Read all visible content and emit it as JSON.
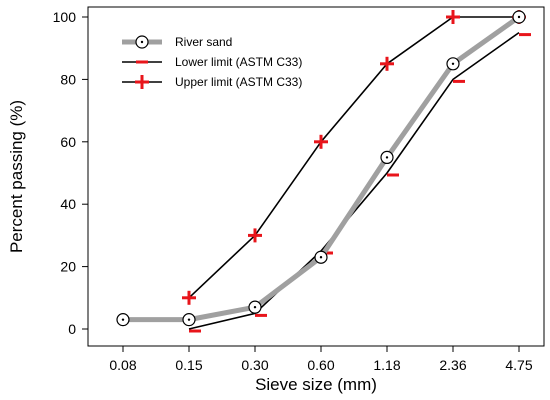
{
  "chart_data": {
    "type": "line",
    "xlabel": "Sieve size (mm)",
    "ylabel": "Percent passing (%)",
    "categories": [
      "0.08",
      "0.15",
      "0.30",
      "0.60",
      "1.18",
      "2.36",
      "4.75"
    ],
    "yticks": [
      "0",
      "20",
      "40",
      "60",
      "80",
      "100"
    ],
    "ylim": [
      0,
      100
    ],
    "grid": false,
    "legend_position": "top-left",
    "series": [
      {
        "name": "River sand",
        "marker": "circle-dot",
        "color": "#a0a0a0",
        "values": [
          3,
          3,
          7,
          23,
          55,
          85,
          100
        ]
      },
      {
        "name": "Lower limit (ASTM C33)",
        "marker": "dash",
        "color": "#000000",
        "marker_color": "#e8151b",
        "values": [
          null,
          0,
          5,
          25,
          50,
          80,
          95
        ]
      },
      {
        "name": "Upper limit (ASTM C33)",
        "marker": "plus",
        "color": "#000000",
        "marker_color": "#e8151b",
        "values": [
          null,
          10,
          30,
          60,
          85,
          100,
          100
        ]
      }
    ]
  }
}
